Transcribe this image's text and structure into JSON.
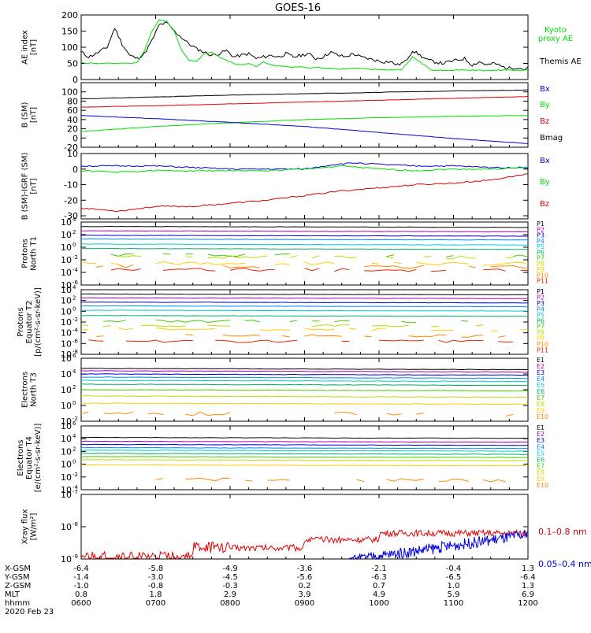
{
  "title": "GOES-16",
  "colors": {
    "black": "#000000",
    "green": "#00dd00",
    "red": "#dd0000",
    "blue": "#0000dd",
    "cyan": "#00cccc",
    "yellow": "#e6c800",
    "orange": "#ff9900",
    "darkred": "#aa0000",
    "ch": [
      "#000000",
      "#aa00aa",
      "#0000cc",
      "#0088ff",
      "#00cccc",
      "#00aa66",
      "#44cc00",
      "#bbdd00",
      "#ffcc00",
      "#ff8800",
      "#ee2200",
      "#aa0000"
    ]
  },
  "chart_data": [
    {
      "type": "line",
      "id": "ae",
      "ylabel": "AE index [nT]",
      "yticks": [
        "200",
        "150",
        "100",
        "50",
        "0"
      ],
      "ylim": [
        0,
        200
      ],
      "legend": [
        {
          "text": "Kyoto proxy AE",
          "lines": [
            "Kyoto",
            "proxy AE"
          ],
          "color": "#00dd00"
        },
        {
          "text": "Themis AE",
          "lines": [
            "Themis AE"
          ],
          "color": "#000000"
        }
      ],
      "series": [
        {
          "name": "Themis AE",
          "color": "#000000",
          "x": [
            6.0,
            6.1,
            6.2,
            6.35,
            6.45,
            6.55,
            6.65,
            6.75,
            6.85,
            6.95,
            7.05,
            7.15,
            7.25,
            7.35,
            7.45,
            7.55,
            7.65,
            7.75,
            7.85,
            7.95,
            8.05,
            8.15,
            8.25,
            8.35,
            8.45,
            8.55,
            8.65,
            8.75,
            8.85,
            8.95,
            9.05,
            9.15,
            9.25,
            9.35,
            9.45,
            9.55,
            9.65,
            9.75,
            9.85,
            9.95,
            10.05,
            10.15,
            10.25,
            10.35,
            10.45,
            10.55,
            10.65,
            10.75,
            10.85,
            10.95,
            11.05,
            11.15,
            11.25,
            11.35,
            11.45,
            11.55,
            11.65,
            11.75,
            11.85,
            11.95,
            12.0
          ],
          "y": [
            85,
            70,
            80,
            100,
            160,
            110,
            75,
            65,
            80,
            120,
            170,
            175,
            150,
            130,
            110,
            95,
            85,
            75,
            80,
            90,
            70,
            75,
            80,
            65,
            70,
            75,
            70,
            80,
            70,
            75,
            80,
            65,
            70,
            85,
            75,
            70,
            80,
            70,
            65,
            60,
            55,
            55,
            45,
            55,
            90,
            75,
            60,
            55,
            50,
            55,
            60,
            65,
            45,
            55,
            45,
            50,
            40,
            35,
            38,
            32,
            35
          ]
        },
        {
          "name": "Kyoto proxy AE",
          "color": "#00dd00",
          "x": [
            6.0,
            6.2,
            6.4,
            6.55,
            6.65,
            6.75,
            6.85,
            6.95,
            7.05,
            7.15,
            7.25,
            7.35,
            7.45,
            7.55,
            7.65,
            7.75,
            7.85,
            7.95,
            8.05,
            8.15,
            8.25,
            8.35,
            8.45,
            8.55,
            8.65,
            8.75,
            8.85,
            8.95,
            9.05,
            9.15,
            9.3,
            9.5,
            9.7,
            9.9,
            10.1,
            10.3,
            10.45,
            10.55,
            10.7,
            10.9,
            11.1,
            11.3,
            11.5,
            11.7,
            11.9,
            12.0
          ],
          "y": [
            52,
            50,
            50,
            50,
            50,
            52,
            90,
            150,
            185,
            180,
            150,
            90,
            60,
            55,
            80,
            85,
            70,
            60,
            50,
            45,
            50,
            40,
            55,
            45,
            42,
            40,
            38,
            40,
            35,
            38,
            35,
            32,
            35,
            32,
            30,
            30,
            70,
            55,
            30,
            28,
            30,
            28,
            28,
            30,
            28,
            30
          ]
        }
      ]
    },
    {
      "type": "line",
      "id": "bsm",
      "ylabel": "B (SM) [nT]",
      "yticks": [
        "100",
        "80",
        "60",
        "40",
        "20",
        "0",
        "-20"
      ],
      "ylim": [
        -20,
        120
      ],
      "legend": [
        {
          "text": "Bx",
          "color": "#0000dd"
        },
        {
          "text": "By",
          "color": "#00dd00"
        },
        {
          "text": "Bz",
          "color": "#dd0000"
        },
        {
          "text": "Bmag",
          "color": "#000000"
        }
      ],
      "series": [
        {
          "name": "Bmag",
          "color": "#000000",
          "x": [
            6,
            7,
            8,
            9,
            10,
            11,
            12
          ],
          "y": [
            85,
            89,
            93,
            96,
            99,
            102,
            104
          ]
        },
        {
          "name": "Bz",
          "color": "#dd0000",
          "x": [
            6,
            7,
            8,
            9,
            10,
            11,
            12
          ],
          "y": [
            67,
            70,
            74,
            78,
            82,
            86,
            90
          ]
        },
        {
          "name": "By",
          "color": "#00dd00",
          "x": [
            6,
            7,
            8,
            9,
            10,
            11,
            12
          ],
          "y": [
            14,
            25,
            33,
            40,
            44,
            47,
            49
          ]
        },
        {
          "name": "Bx",
          "color": "#0000dd",
          "x": [
            6,
            7,
            8,
            9,
            10,
            11,
            12
          ],
          "y": [
            49,
            42,
            34,
            25,
            12,
            -1,
            -12
          ]
        }
      ]
    },
    {
      "type": "line",
      "id": "bres",
      "ylabel": "B (SM)-IGRF (SM) [nT]",
      "yticks": [
        "10",
        "0",
        "-10",
        "-20",
        "-30"
      ],
      "ylim": [
        -32,
        10
      ],
      "legend": [
        {
          "text": "Bx",
          "color": "#0000dd"
        },
        {
          "text": "By",
          "color": "#00dd00"
        },
        {
          "text": "Bz",
          "color": "#dd0000"
        }
      ],
      "series": [
        {
          "name": "Bx",
          "color": "#0000dd",
          "x": [
            6,
            6.5,
            7,
            7.5,
            8,
            8.5,
            9,
            9.4,
            9.7,
            10,
            10.5,
            11,
            11.5,
            12
          ],
          "y": [
            2,
            2,
            2,
            1,
            0,
            0,
            0,
            3,
            4,
            3,
            2,
            2,
            1,
            1
          ]
        },
        {
          "name": "By",
          "color": "#00dd00",
          "x": [
            6,
            6.5,
            7,
            7.5,
            8,
            8.5,
            9,
            9.5,
            10,
            10.5,
            11,
            11.5,
            12
          ],
          "y": [
            -1,
            -2,
            -1,
            -1,
            -1,
            -1,
            0,
            2,
            0,
            -1,
            0,
            0,
            1
          ]
        },
        {
          "name": "Bz",
          "color": "#dd0000",
          "x": [
            6,
            6.5,
            7,
            7.5,
            8,
            8.5,
            9,
            9.5,
            10,
            10.5,
            11,
            11.5,
            12
          ],
          "y": [
            -25,
            -27,
            -24,
            -24,
            -22,
            -20,
            -17,
            -14,
            -12,
            -10,
            -9,
            -7,
            -3
          ]
        }
      ]
    },
    {
      "type": "line",
      "id": "pn",
      "ylabel": "Protons North T1",
      "yscale": "log",
      "ylim": [
        -6,
        4
      ],
      "yticks_exp": [
        4,
        2,
        0,
        -2,
        -4,
        -6
      ],
      "legend": [
        "P1",
        "P2",
        "P3",
        "P4",
        "P5",
        "P6",
        "P7",
        "P8",
        "P9",
        "P10",
        "P11"
      ],
      "levels": [
        3.3,
        2.6,
        1.9,
        1.3,
        0.5,
        -0.2,
        -1.2,
        -1.5,
        -2.5,
        -3.0,
        -3.5
      ]
    },
    {
      "type": "line",
      "id": "pe",
      "ylabel": "Protons Equator T2 [p/(cm²-s-sr-keV)]",
      "yscale": "log",
      "ylim": [
        -8,
        4
      ],
      "yticks_exp": [
        4,
        2,
        0,
        -2,
        -4,
        -6,
        -8
      ],
      "legend": [
        "P1",
        "P2",
        "P3",
        "P4",
        "P5",
        "P6",
        "P7",
        "P8",
        "P9",
        "P10",
        "P11"
      ],
      "levels": [
        3.2,
        2.5,
        1.7,
        1.0,
        0.2,
        -0.8,
        -1.8,
        -2.6,
        -3.3,
        -4.5,
        -5.5
      ]
    },
    {
      "type": "line",
      "id": "en",
      "ylabel": "Electrons North T3",
      "yscale": "log",
      "ylim": [
        -2,
        6
      ],
      "yticks_exp": [
        6,
        4,
        2,
        0,
        -2
      ],
      "legend": [
        "E1",
        "E2",
        "E3",
        "E4",
        "E5",
        "E6",
        "E7",
        "E8",
        "E9",
        "E10"
      ],
      "levels": [
        4.7,
        4.4,
        4.0,
        3.6,
        3.2,
        2.7,
        2.0,
        1.2,
        0.3,
        -1.0
      ]
    },
    {
      "type": "line",
      "id": "ee",
      "ylabel": "Electrons Equator T4 [e/(cm²-s-sr-keV)]",
      "yscale": "log",
      "ylim": [
        -4,
        6
      ],
      "yticks_exp": [
        6,
        4,
        2,
        0,
        -2,
        -4
      ],
      "legend": [
        "E1",
        "E2",
        "E3",
        "E4",
        "E5",
        "E6",
        "E7",
        "E8",
        "E9",
        "E10"
      ],
      "levels": [
        4.2,
        3.6,
        3.1,
        2.6,
        2.2,
        1.7,
        1.2,
        0.7,
        -0.1,
        -2.4
      ]
    },
    {
      "type": "line",
      "id": "xray",
      "ylabel": "Xray flux [W/m²]",
      "yscale": "log",
      "ylim": [
        -9,
        -7
      ],
      "yticks_exp": [
        -7,
        -8,
        -9
      ],
      "legend": [
        {
          "text": "0.1–0.8 nm",
          "color": "#dd0000"
        },
        {
          "text": "0.05–0.4 nm",
          "color": "#0000dd"
        }
      ]
    }
  ],
  "xaxis": {
    "ticks": [
      "0600",
      "0700",
      "0800",
      "0900",
      "1000",
      "1100",
      "1200"
    ],
    "rows": [
      {
        "label": "X-GSM",
        "values": [
          "-6.4",
          "-5.8",
          "-4.9",
          "-3.6",
          "-2.1",
          "-0.4",
          "1.3"
        ]
      },
      {
        "label": "Y-GSM",
        "values": [
          "-1.4",
          "-3.0",
          "-4.5",
          "-5.6",
          "-6.3",
          "-6.5",
          "-6.4"
        ]
      },
      {
        "label": "Z-GSM",
        "values": [
          "-1.0",
          "-0.8",
          "-0.3",
          "0.2",
          "0.7",
          "1.0",
          "1.3"
        ]
      },
      {
        "label": "MLT",
        "values": [
          "0.8",
          "1.8",
          "2.9",
          "3.9",
          "4.9",
          "5.9",
          "6.9"
        ]
      },
      {
        "label": "hhmm",
        "values": [
          "0600",
          "0700",
          "0800",
          "0900",
          "1000",
          "1100",
          "1200"
        ]
      }
    ],
    "date": "2020 Feb 23"
  }
}
